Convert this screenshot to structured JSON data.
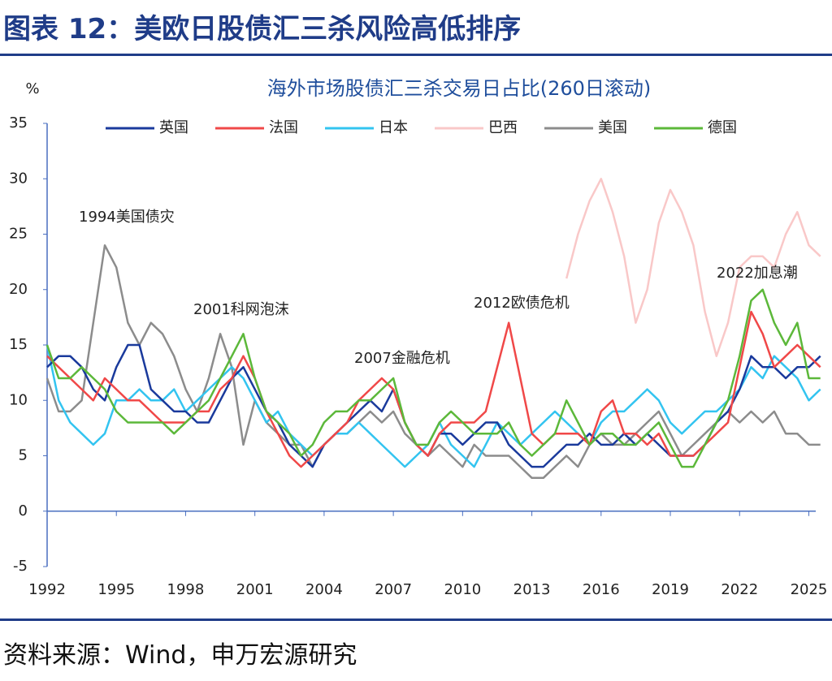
{
  "figure_title": "图表 12：美欧日股债汇三杀风险高低排序",
  "source": "资料来源：Wind，申万宏源研究",
  "chart_data": {
    "type": "line",
    "title": "海外市场股债汇三杀交易日占比(260日滚动)",
    "y_label": "%",
    "x": [
      1992,
      1992.5,
      1993,
      1993.5,
      1994,
      1994.5,
      1995,
      1995.5,
      1996,
      1996.5,
      1997,
      1997.5,
      1998,
      1998.5,
      1999,
      1999.5,
      2000,
      2000.5,
      2001,
      2001.5,
      2002,
      2002.5,
      2003,
      2003.5,
      2004,
      2004.5,
      2005,
      2005.5,
      2006,
      2006.5,
      2007,
      2007.5,
      2008,
      2008.5,
      2009,
      2009.5,
      2010,
      2010.5,
      2011,
      2011.5,
      2012,
      2012.5,
      2013,
      2013.5,
      2014,
      2014.5,
      2015,
      2015.5,
      2016,
      2016.5,
      2017,
      2017.5,
      2018,
      2018.5,
      2019,
      2019.5,
      2020,
      2020.5,
      2021,
      2021.5,
      2022,
      2022.5,
      2023,
      2023.5,
      2024,
      2024.5,
      2025,
      2025.5
    ],
    "xlim": [
      1992,
      2025.3
    ],
    "xticks": [
      1992,
      1995,
      1998,
      2001,
      2004,
      2007,
      2010,
      2013,
      2016,
      2019,
      2022,
      2025
    ],
    "ylim": [
      -5,
      35
    ],
    "yticks": [
      -5,
      0,
      5,
      10,
      15,
      20,
      25,
      30,
      35
    ],
    "series": [
      {
        "name": "英国",
        "color": "#1a3a9c",
        "values": [
          13,
          14,
          14,
          13,
          11,
          10,
          13,
          15,
          15,
          11,
          10,
          9,
          9,
          8,
          8,
          10,
          12,
          13,
          11,
          9,
          8,
          6,
          5,
          4,
          6,
          7,
          8,
          9,
          10,
          9,
          11,
          8,
          6,
          5,
          7,
          7,
          6,
          7,
          8,
          8,
          6,
          5,
          4,
          4,
          5,
          6,
          6,
          7,
          6,
          6,
          7,
          6,
          7,
          6,
          5,
          5,
          5,
          6,
          8,
          9,
          11,
          14,
          13,
          13,
          12,
          13,
          13,
          14
        ]
      },
      {
        "name": "法国",
        "color": "#f04848",
        "values": [
          14,
          13,
          12,
          11,
          10,
          12,
          11,
          10,
          10,
          9,
          8,
          8,
          8,
          9,
          9,
          11,
          12,
          14,
          12,
          9,
          7,
          5,
          4,
          5,
          6,
          7,
          8,
          10,
          11,
          12,
          11,
          8,
          6,
          5,
          7,
          8,
          8,
          8,
          9,
          13,
          17,
          12,
          7,
          6,
          7,
          7,
          7,
          6,
          9,
          10,
          7,
          7,
          6,
          7,
          5,
          5,
          5,
          6,
          7,
          8,
          13,
          18,
          16,
          13,
          14,
          15,
          14,
          13
        ]
      },
      {
        "name": "日本",
        "color": "#33c4f0",
        "values": [
          15,
          10,
          8,
          7,
          6,
          7,
          10,
          10,
          11,
          10,
          10,
          11,
          9,
          10,
          11,
          12,
          13,
          12,
          10,
          8,
          9,
          7,
          6,
          5,
          6,
          7,
          7,
          8,
          7,
          6,
          5,
          4,
          5,
          6,
          8,
          6,
          5,
          4,
          6,
          8,
          7,
          6,
          7,
          8,
          9,
          8,
          7,
          6,
          8,
          9,
          9,
          10,
          11,
          10,
          8,
          7,
          8,
          9,
          9,
          10,
          11,
          13,
          12,
          14,
          13,
          12,
          10,
          11
        ]
      },
      {
        "name": "巴西",
        "color": "#f9c8c8",
        "values": [
          null,
          null,
          null,
          null,
          null,
          null,
          null,
          null,
          null,
          null,
          null,
          null,
          null,
          null,
          null,
          null,
          null,
          null,
          null,
          null,
          null,
          null,
          null,
          null,
          null,
          null,
          null,
          null,
          null,
          null,
          null,
          null,
          null,
          null,
          null,
          null,
          null,
          null,
          null,
          null,
          null,
          null,
          null,
          null,
          null,
          21,
          25,
          28,
          30,
          27,
          23,
          17,
          20,
          26,
          29,
          27,
          24,
          18,
          14,
          17,
          22,
          23,
          23,
          22,
          25,
          27,
          24,
          23
        ]
      },
      {
        "name": "美国",
        "color": "#8c8c8c",
        "values": [
          12,
          9,
          9,
          10,
          17,
          24,
          22,
          17,
          15,
          17,
          16,
          14,
          11,
          9,
          12,
          16,
          13,
          6,
          10,
          8,
          7,
          6,
          6,
          4,
          6,
          7,
          7,
          8,
          9,
          8,
          9,
          7,
          6,
          5,
          6,
          5,
          4,
          6,
          5,
          5,
          5,
          4,
          3,
          3,
          4,
          5,
          4,
          6,
          7,
          6,
          6,
          7,
          8,
          9,
          7,
          5,
          6,
          7,
          8,
          9,
          8,
          9,
          8,
          9,
          7,
          7,
          6,
          6
        ]
      },
      {
        "name": "德国",
        "color": "#5cb83a",
        "values": [
          15,
          12,
          12,
          13,
          12,
          11,
          9,
          8,
          8,
          8,
          8,
          7,
          8,
          9,
          10,
          12,
          14,
          16,
          12,
          9,
          8,
          7,
          5,
          6,
          8,
          9,
          9,
          10,
          10,
          11,
          12,
          8,
          6,
          6,
          8,
          9,
          8,
          7,
          7,
          7,
          8,
          6,
          5,
          6,
          7,
          10,
          8,
          6,
          7,
          7,
          6,
          6,
          7,
          8,
          6,
          4,
          4,
          6,
          8,
          10,
          14,
          19,
          20,
          17,
          15,
          17,
          12,
          12
        ]
      }
    ],
    "annotations": [
      "1994美国债灾",
      "2001科网泡沫",
      "2007金融危机",
      "2012欧债危机",
      "2022加息潮"
    ]
  }
}
